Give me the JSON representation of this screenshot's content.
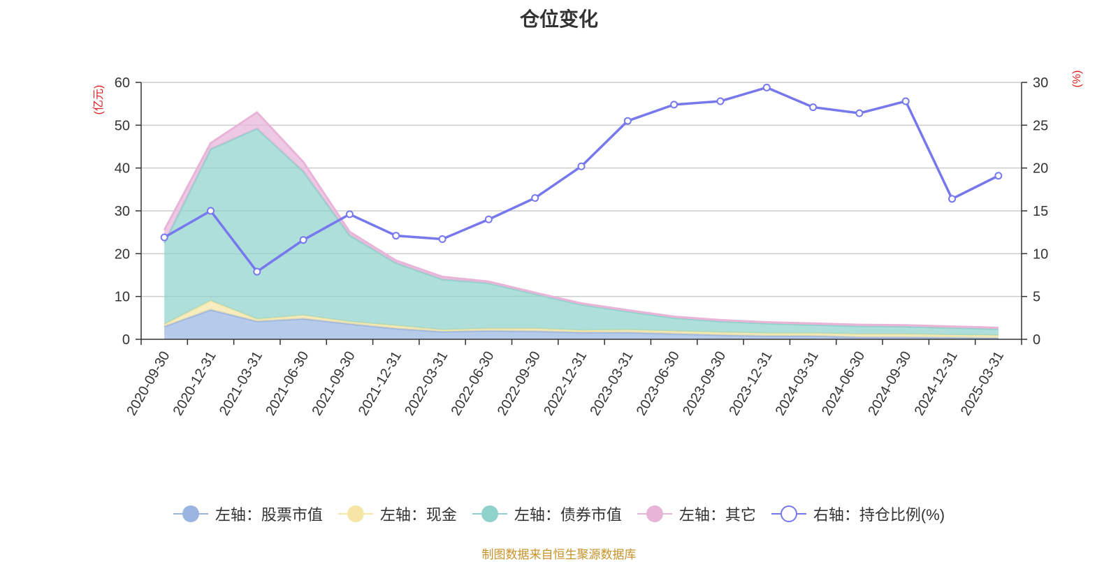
{
  "chart_data": {
    "type": "area",
    "title": "仓位变化",
    "left_axis_unit": "(亿元)",
    "right_axis_unit": "(%)",
    "left_ylim": [
      0,
      60
    ],
    "left_ticks": [
      0,
      10,
      20,
      30,
      40,
      50,
      60
    ],
    "right_ylim": [
      0,
      30
    ],
    "right_ticks": [
      0,
      5,
      10,
      15,
      20,
      25,
      30
    ],
    "categories": [
      "2020-09-30",
      "2020-12-31",
      "2021-03-31",
      "2021-06-30",
      "2021-09-30",
      "2021-12-31",
      "2022-03-31",
      "2022-06-30",
      "2022-09-30",
      "2022-12-31",
      "2023-03-31",
      "2023-06-30",
      "2023-09-30",
      "2023-12-31",
      "2024-03-31",
      "2024-06-30",
      "2024-09-30",
      "2024-12-31",
      "2025-03-31"
    ],
    "series": [
      {
        "name": "左轴：股票市值",
        "axis": "left",
        "kind": "stacked-area",
        "color": "#9ab5e0",
        "values": [
          3.0,
          6.9,
          4.2,
          4.8,
          3.6,
          2.5,
          1.8,
          2.0,
          1.9,
          1.6,
          1.6,
          1.3,
          1.0,
          0.8,
          0.8,
          0.5,
          0.5,
          0.4,
          0.3
        ]
      },
      {
        "name": "左轴：现金",
        "axis": "left",
        "kind": "stacked-area",
        "color": "#f5e6a6",
        "values": [
          0.5,
          2.1,
          0.5,
          0.8,
          0.5,
          0.7,
          0.4,
          0.5,
          0.6,
          0.5,
          0.6,
          0.6,
          0.6,
          0.6,
          0.6,
          0.7,
          0.7,
          0.6,
          0.6
        ]
      },
      {
        "name": "左轴：债券市值",
        "axis": "left",
        "kind": "stacked-area",
        "color": "#8fd2cc",
        "values": [
          19.0,
          35.4,
          44.5,
          33.6,
          20.2,
          14.6,
          11.8,
          10.6,
          8.1,
          6.0,
          4.3,
          3.1,
          2.6,
          2.3,
          2.0,
          1.9,
          1.8,
          1.7,
          1.5
        ]
      },
      {
        "name": "左轴：其它",
        "axis": "left",
        "kind": "stacked-area",
        "color": "#e8b4d8",
        "values": [
          3.0,
          1.4,
          3.8,
          2.2,
          0.8,
          0.6,
          0.6,
          0.4,
          0.3,
          0.3,
          0.3,
          0.3,
          0.3,
          0.3,
          0.3,
          0.3,
          0.3,
          0.3,
          0.3
        ]
      },
      {
        "name": "右轴：持仓比例(%)",
        "axis": "right",
        "kind": "line",
        "color": "#7777ee",
        "values": [
          11.9,
          15.0,
          7.9,
          11.6,
          14.6,
          12.1,
          11.7,
          14.0,
          16.5,
          20.2,
          25.5,
          27.4,
          27.8,
          29.4,
          27.1,
          26.4,
          27.8,
          16.4,
          19.1
        ]
      }
    ]
  },
  "footer": {
    "source": "制图数据来自恒生聚源数据库"
  }
}
